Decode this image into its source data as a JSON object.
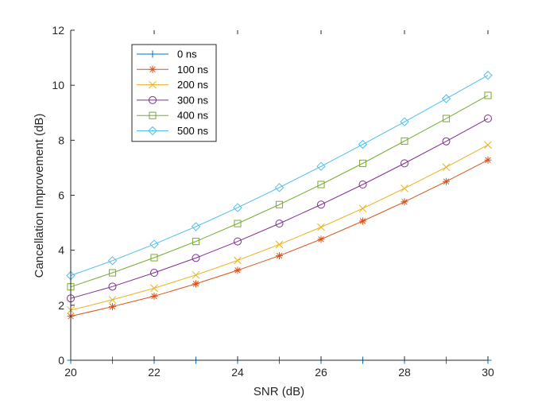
{
  "chart_data": {
    "type": "line",
    "title": "",
    "xlabel": "SNR (dB)",
    "ylabel": "Cancellation Improvement (dB)",
    "xlim": [
      20,
      30
    ],
    "ylim": [
      0,
      12
    ],
    "xticks": [
      20,
      22,
      24,
      26,
      28,
      30
    ],
    "yticks": [
      0,
      2,
      4,
      6,
      8,
      10,
      12
    ],
    "x": [
      20,
      21,
      22,
      23,
      24,
      25,
      26,
      27,
      28,
      29,
      30
    ],
    "legend_position": "top-left",
    "series": [
      {
        "name": "0 ns",
        "color": "#0072BD",
        "marker": "plus",
        "values": [
          0,
          0,
          0,
          0,
          0,
          0,
          0,
          0,
          0,
          0,
          0
        ]
      },
      {
        "name": "100 ns",
        "color": "#D95319",
        "marker": "asterisk",
        "values": [
          1.6,
          1.95,
          2.33,
          2.78,
          3.27,
          3.8,
          4.4,
          5.06,
          5.76,
          6.5,
          7.28
        ]
      },
      {
        "name": "200 ns",
        "color": "#EDB120",
        "marker": "x",
        "values": [
          1.82,
          2.2,
          2.62,
          3.1,
          3.63,
          4.21,
          4.84,
          5.52,
          6.25,
          7.02,
          7.83
        ]
      },
      {
        "name": "300 ns",
        "color": "#7E2F8E",
        "marker": "circle",
        "values": [
          2.25,
          2.68,
          3.18,
          3.72,
          4.32,
          4.97,
          5.66,
          6.39,
          7.16,
          7.96,
          8.79
        ]
      },
      {
        "name": "400 ns",
        "color": "#77AC30",
        "marker": "square",
        "values": [
          2.67,
          3.18,
          3.73,
          4.32,
          4.97,
          5.66,
          6.39,
          7.16,
          7.97,
          8.79,
          9.63
        ]
      },
      {
        "name": "500 ns",
        "color": "#4DBEEE",
        "marker": "diamond",
        "values": [
          3.08,
          3.62,
          4.22,
          4.86,
          5.55,
          6.28,
          7.05,
          7.85,
          8.67,
          9.51,
          10.36
        ]
      }
    ]
  }
}
